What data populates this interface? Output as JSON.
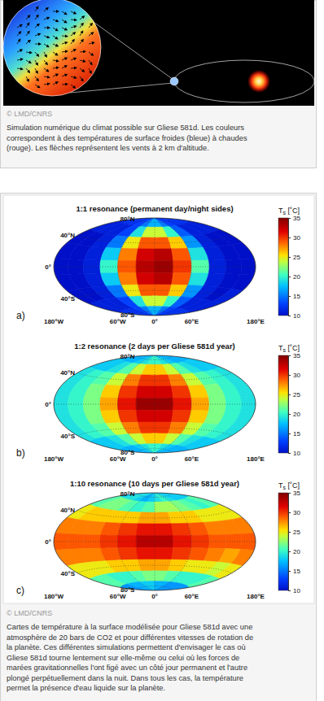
{
  "chart_data": [
    {
      "type": "heatmap",
      "title": "1:1 resonance (permanent day/night sides)",
      "panel": "a)",
      "x": [
        -165,
        -135,
        -105,
        -75,
        -45,
        -15,
        15,
        45,
        75,
        105,
        135,
        165
      ],
      "y": [
        80,
        60,
        40,
        20,
        0,
        -20,
        -40,
        -60,
        -80
      ],
      "values": [
        [
          12,
          12,
          12,
          13,
          15,
          17,
          17,
          15,
          13,
          12,
          12,
          12
        ],
        [
          11,
          11,
          11,
          13,
          19,
          24,
          24,
          20,
          14,
          11,
          11,
          11
        ],
        [
          10,
          10,
          11,
          15,
          25,
          29,
          29,
          26,
          16,
          11,
          10,
          10
        ],
        [
          10,
          10,
          11,
          18,
          28,
          32,
          33,
          29,
          19,
          11,
          10,
          10
        ],
        [
          10,
          10,
          11,
          20,
          29,
          33,
          34,
          30,
          21,
          11,
          10,
          10
        ],
        [
          10,
          10,
          11,
          18,
          28,
          32,
          33,
          29,
          19,
          11,
          10,
          10
        ],
        [
          10,
          10,
          11,
          15,
          25,
          29,
          29,
          26,
          16,
          11,
          10,
          11
        ],
        [
          11,
          11,
          11,
          13,
          19,
          24,
          24,
          20,
          14,
          11,
          11,
          11
        ],
        [
          12,
          12,
          12,
          13,
          15,
          17,
          17,
          15,
          13,
          12,
          12,
          12
        ]
      ],
      "xlim": [
        -180,
        180
      ],
      "ylim": [
        -90,
        90
      ],
      "xticks": [
        {
          "value": -180,
          "label": "180°W"
        },
        {
          "value": -60,
          "label": "60°W"
        },
        {
          "value": 0,
          "label": "0°"
        },
        {
          "value": 60,
          "label": "60°E"
        },
        {
          "value": 180,
          "label": "180°E"
        }
      ],
      "yticks": [
        {
          "value": 80,
          "label": "80°N"
        },
        {
          "value": 40,
          "label": "40°N"
        },
        {
          "value": 0,
          "label": "0°"
        },
        {
          "value": -40,
          "label": "40°S"
        },
        {
          "value": -80,
          "label": "80°S"
        }
      ],
      "grid": true,
      "colorbar": {
        "title": "Ts [˚C]",
        "range": [
          10,
          35
        ],
        "ticks": [
          10,
          15,
          20,
          25,
          30,
          35
        ]
      }
    },
    {
      "type": "heatmap",
      "title": "1:2 resonance (2 days per Gliese 581d year)",
      "panel": "b)",
      "x": [
        -165,
        -135,
        -105,
        -75,
        -45,
        -15,
        15,
        45,
        75,
        105,
        135,
        165
      ],
      "y": [
        80,
        60,
        40,
        20,
        0,
        -20,
        -40,
        -60,
        -80
      ],
      "values": [
        [
          17,
          17,
          17,
          18,
          19,
          20,
          20,
          19,
          18,
          17,
          17,
          17
        ],
        [
          18,
          18,
          19,
          21,
          24,
          26,
          26,
          24,
          21,
          19,
          18,
          18
        ],
        [
          19,
          20,
          21,
          24,
          28,
          30,
          30,
          28,
          24,
          21,
          20,
          19
        ],
        [
          19,
          20,
          22,
          26,
          30,
          32,
          32,
          30,
          26,
          22,
          20,
          19
        ],
        [
          19,
          20,
          22,
          27,
          31,
          34,
          34,
          31,
          27,
          22,
          20,
          19
        ],
        [
          19,
          20,
          22,
          26,
          30,
          32,
          32,
          30,
          26,
          22,
          20,
          19
        ],
        [
          19,
          20,
          21,
          24,
          28,
          30,
          30,
          28,
          24,
          21,
          20,
          19
        ],
        [
          18,
          18,
          19,
          21,
          24,
          26,
          26,
          24,
          21,
          19,
          18,
          18
        ],
        [
          17,
          17,
          17,
          18,
          19,
          20,
          20,
          19,
          18,
          17,
          17,
          17
        ]
      ],
      "xlim": [
        -180,
        180
      ],
      "ylim": [
        -90,
        90
      ],
      "xticks": [
        {
          "value": -180,
          "label": "180°W"
        },
        {
          "value": -60,
          "label": "60°W"
        },
        {
          "value": 0,
          "label": "0°"
        },
        {
          "value": 60,
          "label": "60°E"
        },
        {
          "value": 180,
          "label": "180°E"
        }
      ],
      "yticks": [
        {
          "value": 80,
          "label": "80°N"
        },
        {
          "value": 40,
          "label": "40°N"
        },
        {
          "value": 0,
          "label": "0°"
        },
        {
          "value": -40,
          "label": "40°S"
        },
        {
          "value": -80,
          "label": "80°S"
        }
      ],
      "grid": true,
      "colorbar": {
        "title": "Ts [˚C]",
        "range": [
          10,
          35
        ],
        "ticks": [
          10,
          15,
          20,
          25,
          30,
          35
        ]
      }
    },
    {
      "type": "heatmap",
      "title": "1:10 resonance (10 days per Gliese 581d year)",
      "panel": "c)",
      "x": [
        -165,
        -135,
        -105,
        -75,
        -45,
        -15,
        15,
        45,
        75,
        105,
        135,
        165
      ],
      "y": [
        80,
        60,
        40,
        20,
        0,
        -20,
        -40,
        -60,
        -80
      ],
      "values": [
        [
          18,
          19,
          19,
          18,
          17,
          18,
          19,
          20,
          19,
          18,
          18,
          18
        ],
        [
          21,
          22,
          22,
          21,
          20,
          21,
          23,
          23,
          22,
          21,
          20,
          21
        ],
        [
          25,
          26,
          26,
          26,
          26,
          27,
          27,
          26,
          26,
          25,
          25,
          25
        ],
        [
          28,
          28,
          28,
          29,
          30,
          31,
          31,
          30,
          29,
          28,
          28,
          28
        ],
        [
          29,
          29,
          29,
          30,
          31,
          33,
          33,
          31,
          30,
          29,
          29,
          29
        ],
        [
          28,
          28,
          28,
          29,
          30,
          31,
          31,
          30,
          29,
          28,
          27,
          28
        ],
        [
          25,
          25,
          25,
          26,
          26,
          27,
          27,
          26,
          25,
          25,
          24,
          25
        ],
        [
          21,
          21,
          20,
          20,
          21,
          22,
          22,
          21,
          20,
          20,
          20,
          21
        ],
        [
          16,
          16,
          17,
          17,
          18,
          18,
          17,
          17,
          16,
          16,
          16,
          16
        ]
      ],
      "xlim": [
        -180,
        180
      ],
      "ylim": [
        -90,
        90
      ],
      "xticks": [
        {
          "value": -180,
          "label": "180°W"
        },
        {
          "value": -60,
          "label": "60°W"
        },
        {
          "value": 0,
          "label": "0°"
        },
        {
          "value": 60,
          "label": "60°E"
        },
        {
          "value": 180,
          "label": "180°E"
        }
      ],
      "yticks": [
        {
          "value": 80,
          "label": "80°N"
        },
        {
          "value": 40,
          "label": "40°N"
        },
        {
          "value": 0,
          "label": "0°"
        },
        {
          "value": -40,
          "label": "40°S"
        },
        {
          "value": -80,
          "label": "80°S"
        }
      ],
      "grid": true,
      "colorbar": {
        "title": "Ts [˚C]",
        "range": [
          10,
          35
        ],
        "ticks": [
          10,
          15,
          20,
          25,
          30,
          35
        ]
      }
    }
  ],
  "page": {
    "figure1": {
      "credit": "© LMD/CNRS",
      "caption": [
        "Simulation numérique du climat possible sur Gliese 581d. Les couleurs",
        "correspondent à des températures de surface froides (bleue) à chaudes",
        "(rouge). Les flèches représentent les vents à 2 km d'altitude."
      ]
    },
    "figure2": {
      "credit": "© LMD/CNRS",
      "caption": [
        "Cartes de température à la surface modélisée pour Gliese 581d avec une",
        "atmosphère de 20 bars de CO2 et pour différentes vitesses de rotation de",
        "la planète. Ces différentes simulations permettent d'envisager le cas où",
        "Gliese 581d tourne lentement sur elle-même ou celui où les forces de",
        "marées gravitationnelles l'ont figé avec un côté jour permanent et l'autre",
        "plongé perpétuellement dans la nuit. Dans tous les cas, la température",
        "permet la présence d'eau liquide sur la planète."
      ]
    }
  }
}
